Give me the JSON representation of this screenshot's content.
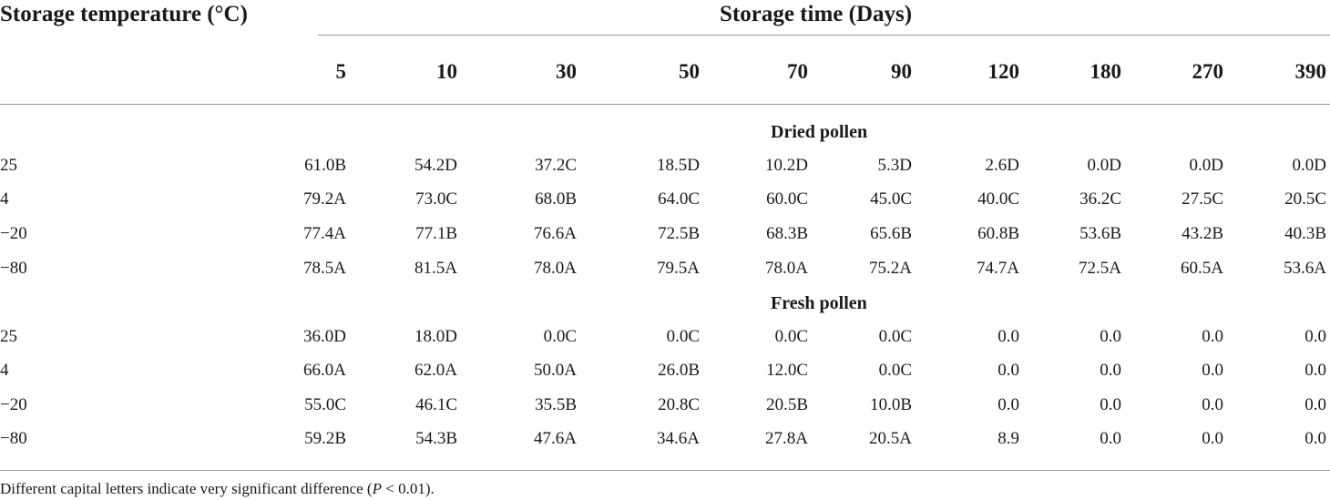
{
  "header": {
    "temperature_label": "Storage temperature (°C)",
    "time_label": "Storage time (Days)"
  },
  "days": [
    "5",
    "10",
    "30",
    "50",
    "70",
    "90",
    "120",
    "180",
    "270",
    "390"
  ],
  "sections": [
    {
      "title": "Dried pollen",
      "rows": [
        {
          "temp": "25",
          "values": [
            "61.0B",
            "54.2D",
            "37.2C",
            "18.5D",
            "10.2D",
            "5.3D",
            "2.6D",
            "0.0D",
            "0.0D",
            "0.0D"
          ]
        },
        {
          "temp": "4",
          "values": [
            "79.2A",
            "73.0C",
            "68.0B",
            "64.0C",
            "60.0C",
            "45.0C",
            "40.0C",
            "36.2C",
            "27.5C",
            "20.5C"
          ]
        },
        {
          "temp": "−20",
          "values": [
            "77.4A",
            "77.1B",
            "76.6A",
            "72.5B",
            "68.3B",
            "65.6B",
            "60.8B",
            "53.6B",
            "43.2B",
            "40.3B"
          ]
        },
        {
          "temp": "−80",
          "values": [
            "78.5A",
            "81.5A",
            "78.0A",
            "79.5A",
            "78.0A",
            "75.2A",
            "74.7A",
            "72.5A",
            "60.5A",
            "53.6A"
          ]
        }
      ]
    },
    {
      "title": "Fresh pollen",
      "rows": [
        {
          "temp": "25",
          "values": [
            "36.0D",
            "18.0D",
            "0.0C",
            "0.0C",
            "0.0C",
            "0.0C",
            "0.0",
            "0.0",
            "0.0",
            "0.0"
          ]
        },
        {
          "temp": "4",
          "values": [
            "66.0A",
            "62.0A",
            "50.0A",
            "26.0B",
            "12.0C",
            "0.0C",
            "0.0",
            "0.0",
            "0.0",
            "0.0"
          ]
        },
        {
          "temp": "−20",
          "values": [
            "55.0C",
            "46.1C",
            "35.5B",
            "20.8C",
            "20.5B",
            "10.0B",
            "0.0",
            "0.0",
            "0.0",
            "0.0"
          ]
        },
        {
          "temp": "−80",
          "values": [
            "59.2B",
            "54.3B",
            "47.6A",
            "34.6A",
            "27.8A",
            "20.5A",
            "8.9",
            "0.0",
            "0.0",
            "0.0"
          ]
        }
      ]
    }
  ],
  "footnote": {
    "prefix": "Different capital letters indicate very significant difference (",
    "p": "P",
    "suffix": " < 0.01)."
  }
}
